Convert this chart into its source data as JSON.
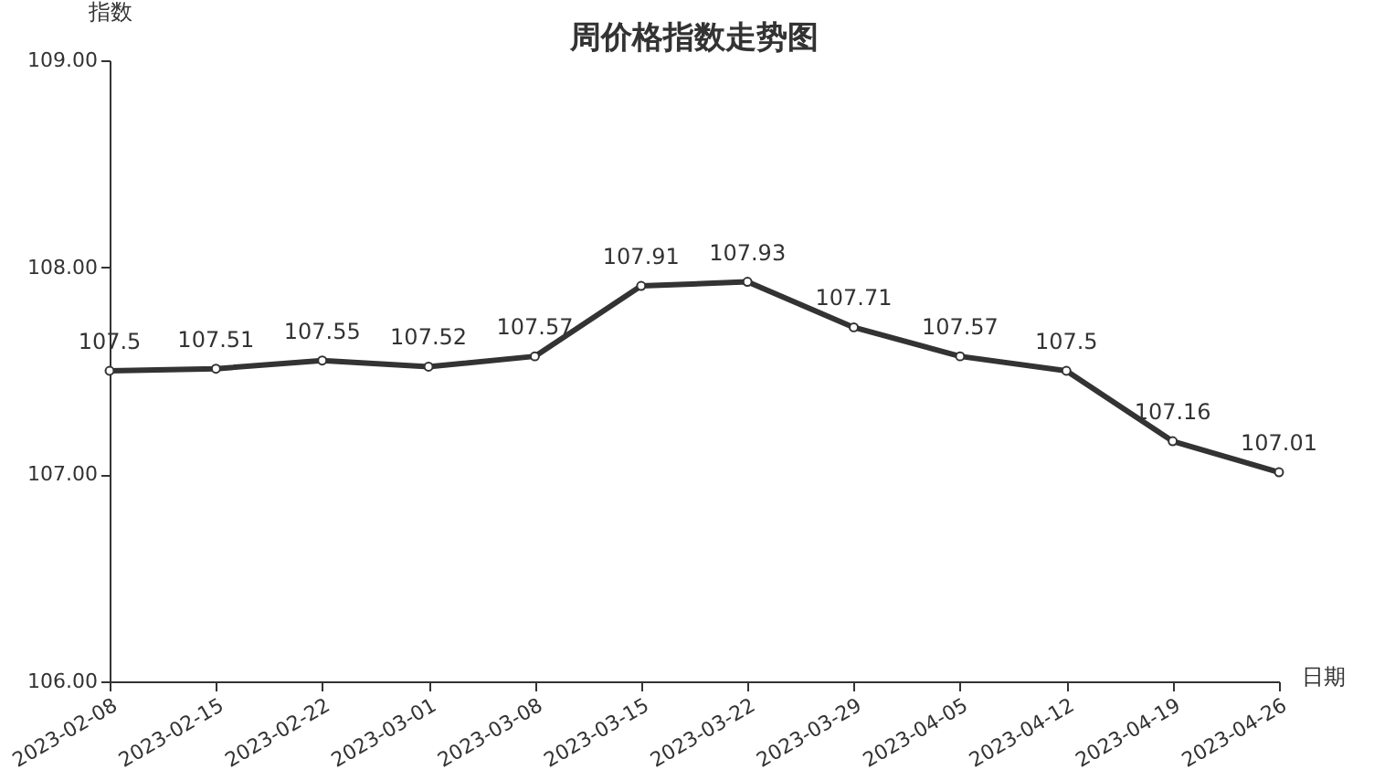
{
  "chart_data": {
    "type": "line",
    "title": "周价格指数走势图",
    "xlabel": "日期",
    "ylabel": "指数",
    "categories": [
      "2023-02-08",
      "2023-02-15",
      "2023-02-22",
      "2023-03-01",
      "2023-03-08",
      "2023-03-15",
      "2023-03-22",
      "2023-03-29",
      "2023-04-05",
      "2023-04-12",
      "2023-04-19",
      "2023-04-26"
    ],
    "series": [
      {
        "color": "#333333",
        "values": [
          107.5,
          107.51,
          107.55,
          107.52,
          107.57,
          107.91,
          107.93,
          107.71,
          107.57,
          107.5,
          107.16,
          107.01
        ]
      }
    ],
    "ylim": [
      106,
      109
    ],
    "yticks": [
      {
        "value": 106,
        "label": "106.00"
      },
      {
        "value": 107,
        "label": "107.00"
      },
      {
        "value": 108,
        "label": "108.00"
      },
      {
        "value": 109,
        "label": "109.00"
      }
    ],
    "data_labels": true,
    "marker": "circle",
    "line_style": "solid",
    "grid": false
  }
}
